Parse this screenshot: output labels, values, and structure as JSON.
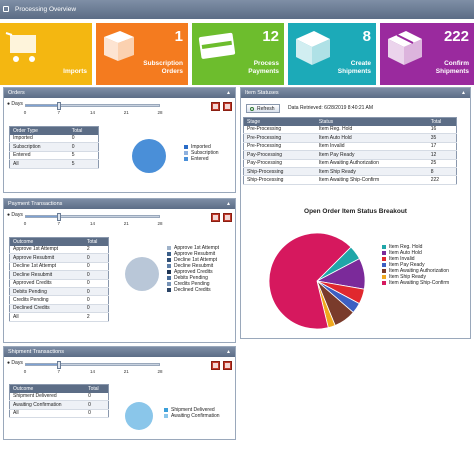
{
  "window": {
    "title": "Processing Overview"
  },
  "tiles": [
    {
      "label": "Imports",
      "count": "",
      "color": "#f4b711"
    },
    {
      "label": "Subscription\nOrders",
      "count": "1",
      "color": "#f47b1f"
    },
    {
      "label": "Process\nPayments",
      "count": "12",
      "color": "#6dbd2d"
    },
    {
      "label": "Create\nShipments",
      "count": "8",
      "color": "#1caab8"
    },
    {
      "label": "Confirm\nShipments",
      "count": "222",
      "color": "#9a2a9e"
    }
  ],
  "slider": {
    "label": "Days",
    "ticks": [
      "0",
      "7",
      "14",
      "21",
      "28"
    ],
    "value": 7,
    "max": 28
  },
  "orders": {
    "title": "Orders",
    "columns": [
      "Order Type",
      "Total"
    ],
    "rows": [
      [
        "Imported",
        "0"
      ],
      [
        "Subscription",
        "0"
      ],
      [
        "Entered",
        "5"
      ],
      [
        "All",
        "5"
      ]
    ],
    "legend": [
      {
        "label": "Imported",
        "color": "#2a6cc7"
      },
      {
        "label": "Subscription",
        "color": "#8fb1de"
      },
      {
        "label": "Entered",
        "color": "#4a8fd8"
      }
    ]
  },
  "payments": {
    "title": "Payment Transactions",
    "columns": [
      "Outcome",
      "Total"
    ],
    "rows": [
      [
        "Approve 1st Attempt",
        "2"
      ],
      [
        "Approve Resubmit",
        "0"
      ],
      [
        "Decline 1st Attempt",
        "0"
      ],
      [
        "Decline Resubmit",
        "0"
      ],
      [
        "Approved Credits",
        "0"
      ],
      [
        "Debits Pending",
        "0"
      ],
      [
        "Credits Pending",
        "0"
      ],
      [
        "Declined Credits",
        "0"
      ],
      [
        "All",
        "2"
      ]
    ],
    "legend": [
      {
        "label": "Approve 1st Attempt",
        "color": "#9fb2c9"
      },
      {
        "label": "Approve Resubmit",
        "color": "#3b5f8a"
      },
      {
        "label": "Decline 1st Attempt",
        "color": "#2e4d74"
      },
      {
        "label": "Decline Resubmit",
        "color": "#5e7fa8"
      },
      {
        "label": "Approved Credits",
        "color": "#1e3554"
      },
      {
        "label": "Debits Pending",
        "color": "#486c99"
      },
      {
        "label": "Credits Pending",
        "color": "#7894b7"
      },
      {
        "label": "Declined Credits",
        "color": "#2b4466"
      }
    ]
  },
  "shipments": {
    "title": "Shipment Transactions",
    "columns": [
      "Outcome",
      "Total"
    ],
    "rows": [
      [
        "Shipment Delivered",
        "0"
      ],
      [
        "Awaiting Confirmation",
        "0"
      ],
      [
        "All",
        "0"
      ]
    ],
    "legend": [
      {
        "label": "Shipment Delivered",
        "color": "#3b9fd9"
      },
      {
        "label": "Awaiting Confirmation",
        "color": "#8ac6ea"
      }
    ]
  },
  "item_statuses": {
    "title": "Item Statuses",
    "refresh_label": "Refresh",
    "retrieved": "Data Retrieved: 6/28/2019 8:40:21 AM",
    "columns": [
      "Stage",
      "Status",
      "Total"
    ],
    "rows": [
      [
        "Pre-Processing",
        "Item Reg. Hold",
        "16"
      ],
      [
        "Pre-Processing",
        "Item Auto Hold",
        "35"
      ],
      [
        "Pre-Processing",
        "Item Invalid",
        "17"
      ],
      [
        "Pay-Processing",
        "Item Pay Ready",
        "12"
      ],
      [
        "Pay-Processing",
        "Item Awaiting Authorization",
        "25"
      ],
      [
        "Ship-Processing",
        "Item Ship Ready",
        "8"
      ],
      [
        "Ship-Processing",
        "Item Awaiting Ship-Confirm",
        "222"
      ]
    ],
    "chart_title": "Open Order Item Status Breakout"
  },
  "chart_data": {
    "type": "pie",
    "title": "Open Order Item Status Breakout",
    "categories": [
      "Item Reg. Hold",
      "Item Auto Hold",
      "Item Invalid",
      "Item Pay Ready",
      "Item Awaiting Authorization",
      "Item Ship Ready",
      "Item Awaiting Ship-Confirm"
    ],
    "values": [
      16,
      35,
      17,
      12,
      25,
      8,
      222
    ],
    "colors": [
      "#1fa6a8",
      "#7b2a9a",
      "#e0282e",
      "#3d5fc2",
      "#7a3b2b",
      "#f0a81d",
      "#d6185e"
    ],
    "legend_position": "right"
  }
}
